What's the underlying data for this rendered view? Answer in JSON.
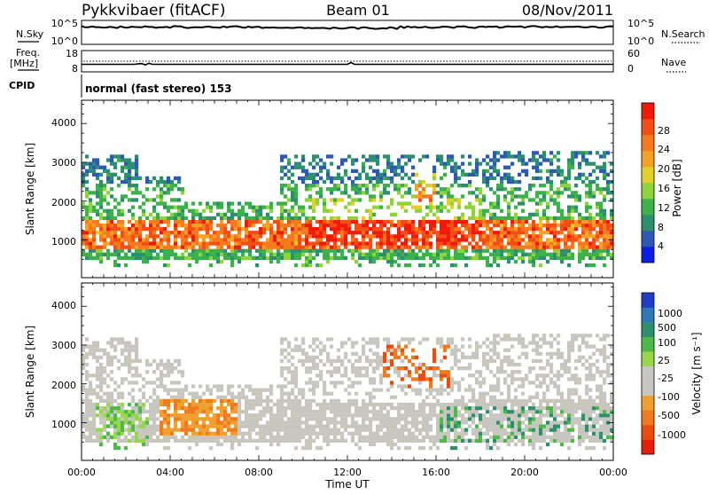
{
  "header": {
    "station": "Pykkvibaer (fitACF)",
    "beam": "Beam 01",
    "date": "08/Nov/2011"
  },
  "noise_panel": {
    "left_label": "N.Sky",
    "ticks_left": [
      "10^5",
      "10^0"
    ],
    "ticks_right": [
      "10^5",
      "10^0"
    ],
    "right_label": "N.Search"
  },
  "freq_panel": {
    "left_label_1": "Freq.",
    "left_label_2": "[MHz]",
    "ticks_left": [
      "18",
      "8"
    ],
    "ticks_right": [
      "60",
      "0"
    ],
    "right_label": "Nave"
  },
  "cpid": {
    "label": "CPID",
    "value": "normal (fast stereo) 153"
  },
  "chart_data": [
    {
      "type": "heatmap",
      "name": "power",
      "ylabel": "Slant Range [km]",
      "ylim": [
        180,
        4600
      ],
      "yticks": [
        "1000",
        "2000",
        "3000",
        "4000"
      ],
      "xlim_hours": [
        0,
        24
      ],
      "colorbar": {
        "label": "Power [dB]",
        "ticks": [
          "4",
          "8",
          "12",
          "16",
          "20",
          "24",
          "28"
        ],
        "colors": [
          "#0a1ee6",
          "#2d58b4",
          "#2e8f6e",
          "#3cb04a",
          "#8ed23c",
          "#e2cf2a",
          "#f4a125",
          "#f47a1d",
          "#f24d14",
          "#ef1a0a"
        ]
      }
    },
    {
      "type": "heatmap",
      "name": "velocity",
      "ylabel": "Slant Range [km]",
      "ylim": [
        180,
        4600
      ],
      "yticks": [
        "1000",
        "2000",
        "3000",
        "4000"
      ],
      "xlim_hours": [
        0,
        24
      ],
      "xticks": [
        "00:00",
        "04:00",
        "08:00",
        "12:00",
        "16:00",
        "20:00",
        "00:00"
      ],
      "xlabel": "Time UT",
      "colorbar": {
        "label": "Velocity [m s⁻¹]",
        "ticks": [
          "1000",
          "500",
          "100",
          "25",
          "-25",
          "-100",
          "-500",
          "-1000"
        ],
        "colors": [
          "#1f3ec4",
          "#2e78b8",
          "#2e8f6e",
          "#4fb84a",
          "#98d64a",
          "#c7c7c0",
          "#c7c7c0",
          "#f0a030",
          "#f07a20",
          "#ea4c10",
          "#e61e0a"
        ]
      }
    }
  ]
}
